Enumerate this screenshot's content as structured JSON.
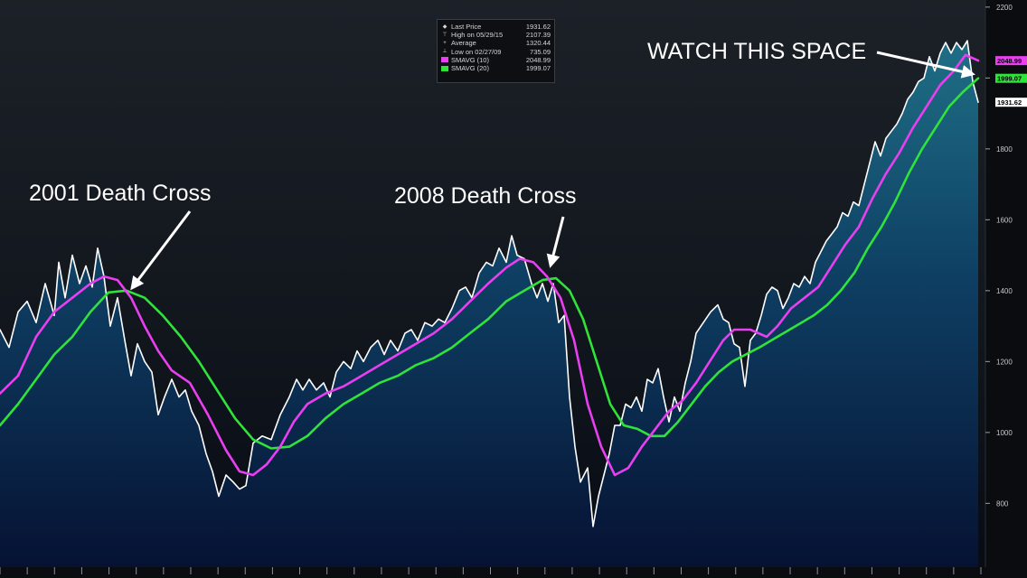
{
  "colors": {
    "price": "#ffffff",
    "sma10": "#e83ff0",
    "sma20": "#2fe33a",
    "fill_top": "#1f6f86",
    "fill_bottom": "#061233",
    "arrow": "#ffffff"
  },
  "annotations": [
    {
      "id": "death-cross-2001",
      "text": "2001 Death Cross"
    },
    {
      "id": "death-cross-2008",
      "text": "2008 Death Cross"
    },
    {
      "id": "watch-this-space",
      "text": "WATCH THIS SPACE"
    }
  ],
  "legend": {
    "rows": [
      {
        "icon": "last-price-icon",
        "label": "Last Price",
        "value": "1931.62"
      },
      {
        "icon": "high-icon",
        "label": "High on 05/29/15",
        "value": "2107.39"
      },
      {
        "icon": "average-icon",
        "label": "Average",
        "value": "1320.44"
      },
      {
        "icon": "low-icon",
        "label": "Low on 02/27/09",
        "value": "735.09"
      },
      {
        "icon": "sma10-swatch",
        "label": "SMAVG (10)",
        "value": "2048.99"
      },
      {
        "icon": "sma20-swatch",
        "label": "SMAVG (20)",
        "value": "1999.07"
      }
    ]
  },
  "price_tags": [
    {
      "series": "SMAVG (10)",
      "text": "2048.99"
    },
    {
      "series": "SMAVG (20)",
      "text": "1999.07"
    },
    {
      "series": "Last Price",
      "text": "1931.62"
    }
  ],
  "chart_data": {
    "type": "line",
    "ylim": [
      620,
      2220
    ],
    "y_ticks": [
      800,
      1000,
      1200,
      1400,
      1600,
      1800,
      2000,
      2200
    ],
    "y_tick_labels": [
      "800",
      "1000",
      "1200",
      "1400",
      "1600",
      "1800",
      "2000",
      "2200"
    ],
    "grid": false,
    "legend_position": "top-center",
    "xlim": [
      0,
      1085
    ],
    "x_axis_ticks": 36,
    "series": [
      {
        "name": "Last Price",
        "points": [
          [
            0,
            1290
          ],
          [
            10,
            1240
          ],
          [
            20,
            1340
          ],
          [
            30,
            1370
          ],
          [
            40,
            1310
          ],
          [
            50,
            1420
          ],
          [
            60,
            1330
          ],
          [
            65,
            1480
          ],
          [
            72,
            1380
          ],
          [
            80,
            1500
          ],
          [
            88,
            1420
          ],
          [
            95,
            1470
          ],
          [
            102,
            1410
          ],
          [
            108,
            1520
          ],
          [
            115,
            1440
          ],
          [
            122,
            1300
          ],
          [
            130,
            1380
          ],
          [
            138,
            1260
          ],
          [
            145,
            1160
          ],
          [
            152,
            1250
          ],
          [
            160,
            1200
          ],
          [
            168,
            1170
          ],
          [
            175,
            1050
          ],
          [
            182,
            1100
          ],
          [
            190,
            1150
          ],
          [
            198,
            1100
          ],
          [
            205,
            1120
          ],
          [
            212,
            1060
          ],
          [
            220,
            1020
          ],
          [
            228,
            940
          ],
          [
            235,
            890
          ],
          [
            242,
            820
          ],
          [
            250,
            880
          ],
          [
            258,
            860
          ],
          [
            265,
            840
          ],
          [
            272,
            850
          ],
          [
            280,
            970
          ],
          [
            290,
            990
          ],
          [
            300,
            980
          ],
          [
            310,
            1050
          ],
          [
            320,
            1100
          ],
          [
            328,
            1150
          ],
          [
            335,
            1120
          ],
          [
            342,
            1150
          ],
          [
            350,
            1120
          ],
          [
            358,
            1140
          ],
          [
            365,
            1100
          ],
          [
            372,
            1170
          ],
          [
            380,
            1200
          ],
          [
            388,
            1180
          ],
          [
            395,
            1230
          ],
          [
            402,
            1200
          ],
          [
            410,
            1240
          ],
          [
            418,
            1260
          ],
          [
            425,
            1220
          ],
          [
            432,
            1260
          ],
          [
            440,
            1230
          ],
          [
            448,
            1280
          ],
          [
            455,
            1290
          ],
          [
            462,
            1260
          ],
          [
            470,
            1310
          ],
          [
            478,
            1300
          ],
          [
            485,
            1320
          ],
          [
            492,
            1310
          ],
          [
            500,
            1350
          ],
          [
            508,
            1400
          ],
          [
            515,
            1410
          ],
          [
            522,
            1380
          ],
          [
            530,
            1450
          ],
          [
            538,
            1480
          ],
          [
            545,
            1470
          ],
          [
            552,
            1520
          ],
          [
            560,
            1480
          ],
          [
            566,
            1555
          ],
          [
            572,
            1500
          ],
          [
            580,
            1490
          ],
          [
            588,
            1420
          ],
          [
            594,
            1380
          ],
          [
            600,
            1420
          ],
          [
            606,
            1370
          ],
          [
            612,
            1420
          ],
          [
            618,
            1310
          ],
          [
            624,
            1330
          ],
          [
            630,
            1100
          ],
          [
            636,
            960
          ],
          [
            642,
            860
          ],
          [
            650,
            900
          ],
          [
            656,
            735
          ],
          [
            662,
            820
          ],
          [
            668,
            880
          ],
          [
            674,
            940
          ],
          [
            680,
            1020
          ],
          [
            686,
            1020
          ],
          [
            692,
            1080
          ],
          [
            698,
            1070
          ],
          [
            704,
            1100
          ],
          [
            710,
            1060
          ],
          [
            716,
            1150
          ],
          [
            722,
            1140
          ],
          [
            728,
            1180
          ],
          [
            734,
            1100
          ],
          [
            740,
            1030
          ],
          [
            746,
            1100
          ],
          [
            752,
            1060
          ],
          [
            758,
            1140
          ],
          [
            764,
            1200
          ],
          [
            770,
            1280
          ],
          [
            778,
            1310
          ],
          [
            786,
            1340
          ],
          [
            794,
            1360
          ],
          [
            800,
            1320
          ],
          [
            806,
            1310
          ],
          [
            812,
            1250
          ],
          [
            818,
            1240
          ],
          [
            824,
            1130
          ],
          [
            830,
            1260
          ],
          [
            836,
            1280
          ],
          [
            842,
            1330
          ],
          [
            848,
            1390
          ],
          [
            854,
            1410
          ],
          [
            860,
            1400
          ],
          [
            866,
            1350
          ],
          [
            872,
            1380
          ],
          [
            878,
            1420
          ],
          [
            884,
            1410
          ],
          [
            890,
            1440
          ],
          [
            896,
            1420
          ],
          [
            902,
            1480
          ],
          [
            908,
            1510
          ],
          [
            914,
            1540
          ],
          [
            920,
            1560
          ],
          [
            926,
            1580
          ],
          [
            932,
            1620
          ],
          [
            938,
            1610
          ],
          [
            944,
            1650
          ],
          [
            950,
            1640
          ],
          [
            956,
            1700
          ],
          [
            962,
            1760
          ],
          [
            968,
            1820
          ],
          [
            974,
            1780
          ],
          [
            980,
            1830
          ],
          [
            986,
            1850
          ],
          [
            992,
            1870
          ],
          [
            998,
            1900
          ],
          [
            1004,
            1940
          ],
          [
            1010,
            1960
          ],
          [
            1016,
            1990
          ],
          [
            1022,
            2000
          ],
          [
            1028,
            2060
          ],
          [
            1034,
            2020
          ],
          [
            1040,
            2070
          ],
          [
            1046,
            2100
          ],
          [
            1052,
            2070
          ],
          [
            1058,
            2100
          ],
          [
            1064,
            2080
          ],
          [
            1070,
            2105
          ],
          [
            1076,
            1990
          ],
          [
            1082,
            1931.62
          ]
        ]
      },
      {
        "name": "SMAVG (10)",
        "points": [
          [
            0,
            1110
          ],
          [
            20,
            1160
          ],
          [
            40,
            1270
          ],
          [
            60,
            1340
          ],
          [
            80,
            1380
          ],
          [
            100,
            1420
          ],
          [
            115,
            1440
          ],
          [
            130,
            1430
          ],
          [
            145,
            1380
          ],
          [
            160,
            1300
          ],
          [
            175,
            1230
          ],
          [
            190,
            1175
          ],
          [
            210,
            1140
          ],
          [
            230,
            1050
          ],
          [
            250,
            950
          ],
          [
            265,
            890
          ],
          [
            280,
            880
          ],
          [
            295,
            910
          ],
          [
            310,
            960
          ],
          [
            325,
            1030
          ],
          [
            340,
            1080
          ],
          [
            360,
            1110
          ],
          [
            380,
            1130
          ],
          [
            400,
            1160
          ],
          [
            420,
            1190
          ],
          [
            440,
            1220
          ],
          [
            460,
            1250
          ],
          [
            480,
            1280
          ],
          [
            500,
            1320
          ],
          [
            520,
            1370
          ],
          [
            540,
            1420
          ],
          [
            560,
            1465
          ],
          [
            575,
            1490
          ],
          [
            590,
            1480
          ],
          [
            605,
            1440
          ],
          [
            620,
            1380
          ],
          [
            635,
            1260
          ],
          [
            650,
            1080
          ],
          [
            665,
            960
          ],
          [
            680,
            880
          ],
          [
            695,
            900
          ],
          [
            710,
            960
          ],
          [
            725,
            1010
          ],
          [
            740,
            1060
          ],
          [
            755,
            1090
          ],
          [
            770,
            1140
          ],
          [
            785,
            1200
          ],
          [
            800,
            1260
          ],
          [
            812,
            1290
          ],
          [
            830,
            1290
          ],
          [
            848,
            1270
          ],
          [
            860,
            1300
          ],
          [
            875,
            1350
          ],
          [
            890,
            1380
          ],
          [
            905,
            1410
          ],
          [
            920,
            1470
          ],
          [
            935,
            1530
          ],
          [
            950,
            1580
          ],
          [
            965,
            1660
          ],
          [
            980,
            1730
          ],
          [
            995,
            1790
          ],
          [
            1010,
            1860
          ],
          [
            1025,
            1920
          ],
          [
            1040,
            1980
          ],
          [
            1055,
            2020
          ],
          [
            1068,
            2065
          ],
          [
            1082,
            2048.99
          ]
        ]
      },
      {
        "name": "SMAVG (20)",
        "points": [
          [
            0,
            1020
          ],
          [
            20,
            1080
          ],
          [
            40,
            1150
          ],
          [
            60,
            1220
          ],
          [
            80,
            1270
          ],
          [
            100,
            1340
          ],
          [
            120,
            1395
          ],
          [
            140,
            1400
          ],
          [
            160,
            1380
          ],
          [
            180,
            1330
          ],
          [
            200,
            1270
          ],
          [
            220,
            1200
          ],
          [
            240,
            1120
          ],
          [
            260,
            1040
          ],
          [
            280,
            980
          ],
          [
            300,
            955
          ],
          [
            320,
            960
          ],
          [
            340,
            990
          ],
          [
            360,
            1040
          ],
          [
            380,
            1080
          ],
          [
            400,
            1110
          ],
          [
            420,
            1140
          ],
          [
            440,
            1160
          ],
          [
            460,
            1190
          ],
          [
            480,
            1210
          ],
          [
            500,
            1240
          ],
          [
            520,
            1280
          ],
          [
            540,
            1320
          ],
          [
            560,
            1370
          ],
          [
            580,
            1400
          ],
          [
            600,
            1430
          ],
          [
            615,
            1435
          ],
          [
            630,
            1400
          ],
          [
            645,
            1320
          ],
          [
            660,
            1200
          ],
          [
            675,
            1080
          ],
          [
            690,
            1020
          ],
          [
            705,
            1010
          ],
          [
            720,
            990
          ],
          [
            735,
            990
          ],
          [
            750,
            1030
          ],
          [
            765,
            1080
          ],
          [
            780,
            1130
          ],
          [
            795,
            1170
          ],
          [
            810,
            1200
          ],
          [
            825,
            1220
          ],
          [
            840,
            1240
          ],
          [
            860,
            1270
          ],
          [
            880,
            1300
          ],
          [
            900,
            1330
          ],
          [
            915,
            1360
          ],
          [
            930,
            1400
          ],
          [
            945,
            1450
          ],
          [
            960,
            1520
          ],
          [
            975,
            1580
          ],
          [
            990,
            1650
          ],
          [
            1005,
            1730
          ],
          [
            1020,
            1800
          ],
          [
            1035,
            1860
          ],
          [
            1050,
            1920
          ],
          [
            1065,
            1960
          ],
          [
            1082,
            1999.07
          ]
        ]
      }
    ]
  }
}
